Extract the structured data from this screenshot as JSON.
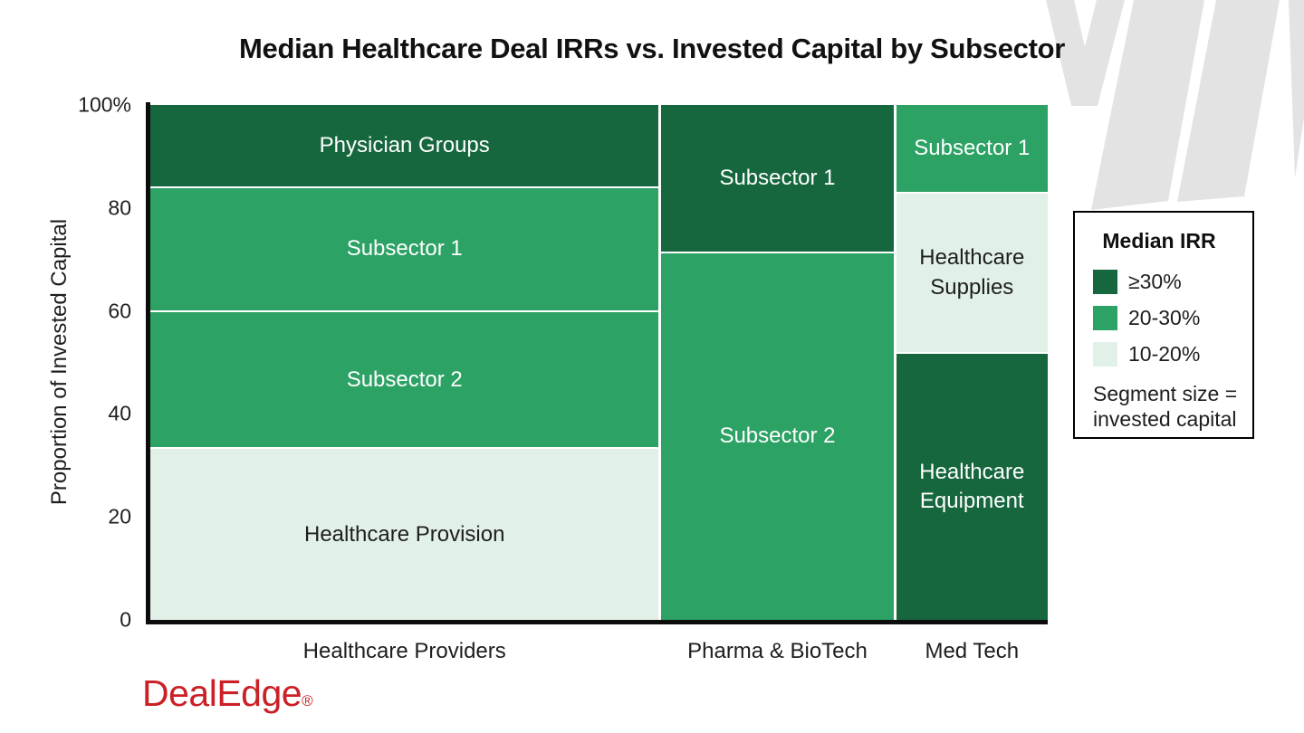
{
  "title": "Median Healthcare Deal IRRs vs. Invested Capital by Subsector",
  "y_axis": {
    "label": "Proportion of Invested Capital",
    "ticks": [
      "100%",
      "80",
      "60",
      "40",
      "20",
      "0"
    ]
  },
  "legend": {
    "title": "Median IRR",
    "items": [
      {
        "label": "≥30%",
        "color": "#16673e"
      },
      {
        "label": "20-30%",
        "color": "#2ca265"
      },
      {
        "label": "10-20%",
        "color": "#e2f1e8"
      }
    ],
    "note": [
      "Segment size =",
      "invested capital"
    ]
  },
  "logo": {
    "text": "DealEdge",
    "reg": "®",
    "color": "#cb2026"
  },
  "decoration": {
    "color": "#e3e3e3"
  },
  "colors": {
    "irr_ge_30": "#16673e",
    "irr_20_30": "#2ca265",
    "irr_10_20": "#e2f1e8",
    "axis": "#0c0c0c",
    "text_dark": "#1e1e1e",
    "text_light": "#ffffff"
  },
  "chart_data": {
    "type": "marimekko",
    "title": "Median Healthcare Deal IRRs vs. Invested Capital by Subsector",
    "xlabel": "",
    "ylabel": "Proportion of Invested Capital",
    "ylim": [
      0,
      100
    ],
    "y_ticks_pct": [
      0,
      20,
      40,
      60,
      80,
      100
    ],
    "grid": false,
    "legend_position": "right",
    "column_width_unit": "share of total invested capital (%)",
    "segment_height_unit": "proportion of invested capital within sector (%)",
    "columns": [
      {
        "category": "Healthcare Providers",
        "width_pct": 57,
        "segments": [
          {
            "label": "Physician Groups",
            "size_pct": 16,
            "span": [
              84,
              100
            ],
            "irr_band": "≥30%",
            "color": "#16673e",
            "text_color": "#ffffff"
          },
          {
            "label": "Subsector 1",
            "size_pct": 24,
            "span": [
              60,
              84
            ],
            "irr_band": "20-30%",
            "color": "#2ca265",
            "text_color": "#ffffff"
          },
          {
            "label": "Subsector 2",
            "size_pct": 26.5,
            "span": [
              33.5,
              60
            ],
            "irr_band": "20-30%",
            "color": "#2ca265",
            "text_color": "#ffffff"
          },
          {
            "label": "Healthcare Provision",
            "size_pct": 33.5,
            "span": [
              0,
              33.5
            ],
            "irr_band": "10-20%",
            "color": "#e2f1e8",
            "text_color": "#1e1e1e"
          }
        ]
      },
      {
        "category": "Pharma & BioTech",
        "width_pct": 26,
        "segments": [
          {
            "label": "Subsector 1",
            "size_pct": 28.5,
            "span": [
              71.5,
              100
            ],
            "irr_band": "≥30%",
            "color": "#16673e",
            "text_color": "#ffffff"
          },
          {
            "label": "Subsector 2",
            "size_pct": 71.5,
            "span": [
              0,
              71.5
            ],
            "irr_band": "20-30%",
            "color": "#2ca265",
            "text_color": "#ffffff"
          }
        ]
      },
      {
        "category": "Med Tech",
        "width_pct": 17,
        "segments": [
          {
            "label": "Subsector 1",
            "size_pct": 17,
            "span": [
              83,
              100
            ],
            "irr_band": "20-30%",
            "color": "#2ca265",
            "text_color": "#ffffff"
          },
          {
            "label": "Healthcare Supplies",
            "size_pct": 31,
            "span": [
              52,
              83
            ],
            "irr_band": "10-20%",
            "color": "#e2f1e8",
            "text_color": "#1e1e1e"
          },
          {
            "label": "Healthcare Equipment",
            "size_pct": 52,
            "span": [
              0,
              52
            ],
            "irr_band": "≥30%",
            "color": "#16673e",
            "text_color": "#ffffff"
          }
        ]
      }
    ]
  }
}
